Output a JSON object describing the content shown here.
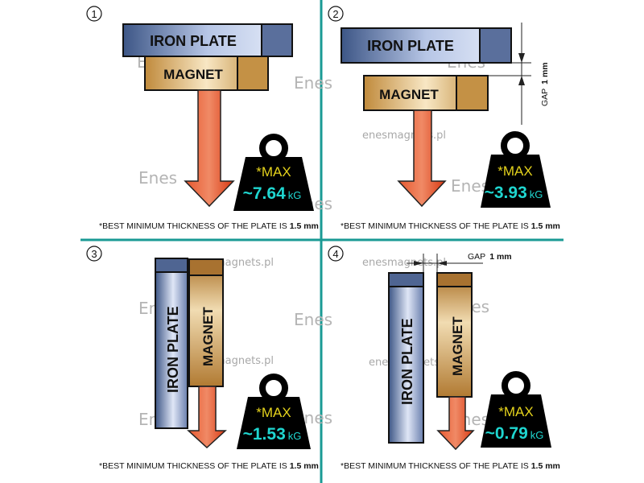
{
  "colors": {
    "divider": "#1a9a94",
    "iron": "#8ea3c8",
    "magnet": "#c99a4e",
    "arrow": "#e0401c",
    "weight": "#000000",
    "max_text": "#e4d21c",
    "value_text": "#1fd6d0"
  },
  "watermark": {
    "site": "enesmagnets.pl",
    "logo": "Enes"
  },
  "panels": [
    {
      "number": "1",
      "iron_label": "IRON PLATE",
      "magnet_label": "MAGNET",
      "max_label": "*MAX",
      "value": "~7.64",
      "unit": "kG",
      "footnote_prefix": "*BEST MINIMUM THICKNESS OF THE PLATE IS ",
      "footnote_value": "1.5 mm"
    },
    {
      "number": "2",
      "iron_label": "IRON PLATE",
      "magnet_label": "MAGNET",
      "gap_label": "GAP",
      "gap_value": "1 mm",
      "max_label": "*MAX",
      "value": "~3.93",
      "unit": "kG",
      "footnote_prefix": "*BEST MINIMUM THICKNESS OF THE PLATE IS ",
      "footnote_value": "1.5 mm"
    },
    {
      "number": "3",
      "iron_label": "IRON  PLATE",
      "magnet_label": "MAGNET",
      "max_label": "*MAX",
      "value": "~1.53",
      "unit": "kG",
      "footnote_prefix": "*BEST MINIMUM THICKNESS OF THE PLATE IS ",
      "footnote_value": "1.5 mm"
    },
    {
      "number": "4",
      "iron_label": "IRON PLATE",
      "magnet_label": "MAGNET",
      "gap_label": "GAP",
      "gap_value": "1 mm",
      "max_label": "*MAX",
      "value": "~0.79",
      "unit": "kG",
      "footnote_prefix": "*BEST MINIMUM THICKNESS OF THE PLATE IS ",
      "footnote_value": "1.5 mm"
    }
  ]
}
